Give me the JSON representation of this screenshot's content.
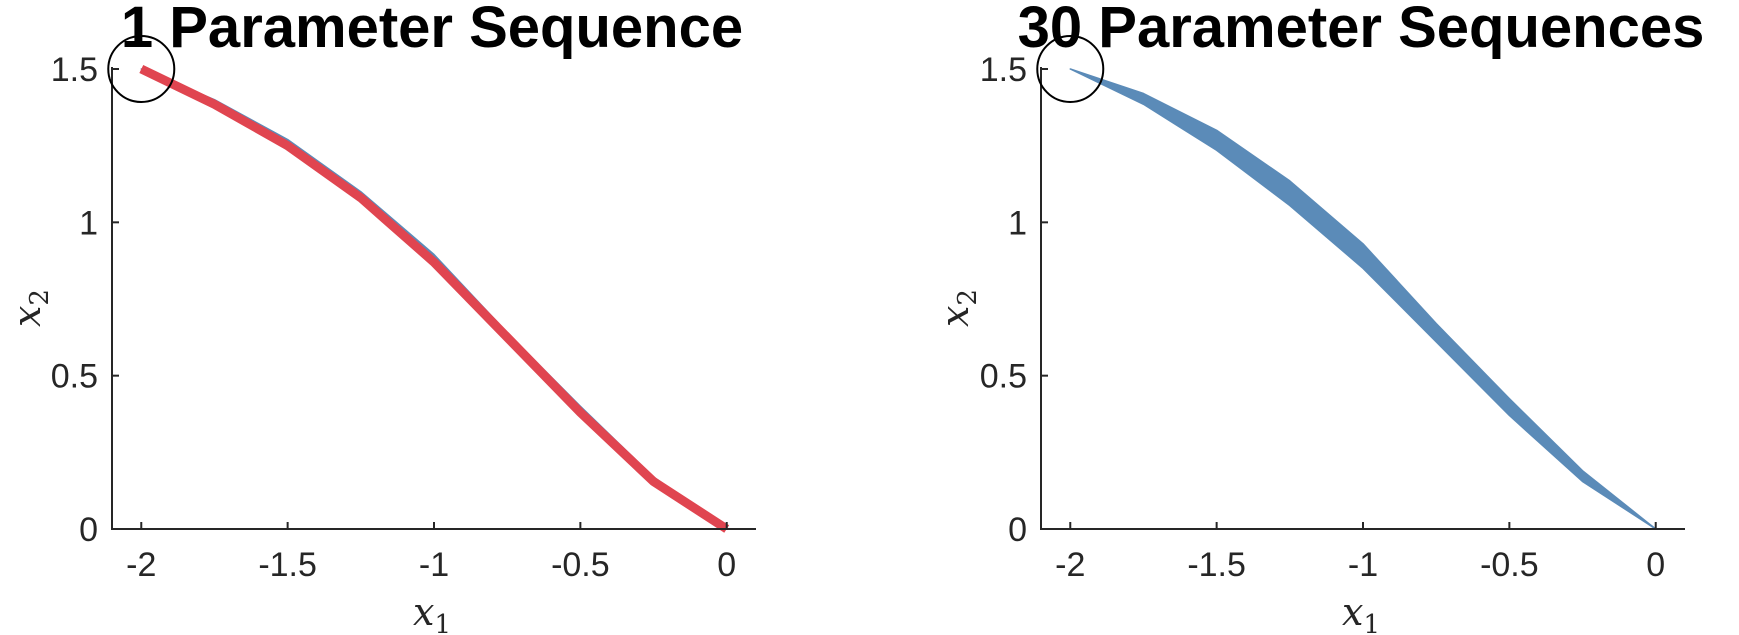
{
  "colors": {
    "band": "#5b8bb8",
    "nominal": "#e04550",
    "axis": "#262626",
    "marker": "#000000"
  },
  "chart_data": [
    {
      "type": "area",
      "title": "1 Parameter Sequence",
      "xlabel": "x",
      "xlabel_sub": "1",
      "ylabel": "x",
      "ylabel_sub": "2",
      "xlim": [
        -2.1,
        0.1
      ],
      "ylim": [
        0,
        1.5
      ],
      "xticks": [
        -2,
        -1.5,
        -1,
        -0.5,
        0
      ],
      "xtick_labels": [
        "-2",
        "-1.5",
        "-1",
        "-0.5",
        "0"
      ],
      "yticks": [
        0,
        0.5,
        1,
        1.5
      ],
      "ytick_labels": [
        "0",
        "0.5",
        "1",
        "1.5"
      ],
      "grid": false,
      "start_marker": {
        "x": -2,
        "y": 1.5,
        "shape": "circle"
      },
      "band": {
        "upper": [
          [
            -2,
            1.5
          ],
          [
            -1.75,
            1.4
          ],
          [
            -1.5,
            1.27
          ],
          [
            -1.25,
            1.1
          ],
          [
            -1,
            0.895
          ],
          [
            -0.75,
            0.64
          ],
          [
            -0.5,
            0.4
          ],
          [
            -0.25,
            0.17
          ],
          [
            0,
            0
          ]
        ],
        "lower": [
          [
            0,
            0
          ],
          [
            -0.25,
            0.15
          ],
          [
            -0.5,
            0.375
          ],
          [
            -0.75,
            0.62
          ],
          [
            -1,
            0.865
          ],
          [
            -1.25,
            1.075
          ],
          [
            -1.5,
            1.245
          ],
          [
            -1.75,
            1.38
          ],
          [
            -2,
            1.5
          ]
        ]
      },
      "line": [
        [
          -2,
          1.5
        ],
        [
          -1.75,
          1.385
        ],
        [
          -1.5,
          1.25
        ],
        [
          -1.25,
          1.08
        ],
        [
          -1,
          0.87
        ],
        [
          -0.75,
          0.625
        ],
        [
          -0.5,
          0.38
        ],
        [
          -0.25,
          0.155
        ],
        [
          0,
          0
        ]
      ]
    },
    {
      "type": "area",
      "title": "30 Parameter Sequences",
      "xlabel": "x",
      "xlabel_sub": "1",
      "ylabel": "x",
      "ylabel_sub": "2",
      "xlim": [
        -2.1,
        0.1
      ],
      "ylim": [
        0,
        1.5
      ],
      "xticks": [
        -2,
        -1.5,
        -1,
        -0.5,
        0
      ],
      "xtick_labels": [
        "-2",
        "-1.5",
        "-1",
        "-0.5",
        "0"
      ],
      "yticks": [
        0,
        0.5,
        1,
        1.5
      ],
      "ytick_labels": [
        "0",
        "0.5",
        "1",
        "1.5"
      ],
      "grid": false,
      "start_marker": {
        "x": -2,
        "y": 1.5,
        "shape": "circle"
      },
      "band": {
        "upper": [
          [
            -2,
            1.5
          ],
          [
            -1.75,
            1.42
          ],
          [
            -1.5,
            1.3
          ],
          [
            -1.25,
            1.135
          ],
          [
            -1,
            0.93
          ],
          [
            -0.75,
            0.67
          ],
          [
            -0.5,
            0.425
          ],
          [
            -0.25,
            0.19
          ],
          [
            0,
            0
          ]
        ],
        "lower": [
          [
            0,
            0
          ],
          [
            -0.25,
            0.155
          ],
          [
            -0.5,
            0.37
          ],
          [
            -0.75,
            0.61
          ],
          [
            -1,
            0.85
          ],
          [
            -1.25,
            1.055
          ],
          [
            -1.5,
            1.235
          ],
          [
            -1.75,
            1.385
          ],
          [
            -2,
            1.5
          ]
        ]
      }
    }
  ]
}
